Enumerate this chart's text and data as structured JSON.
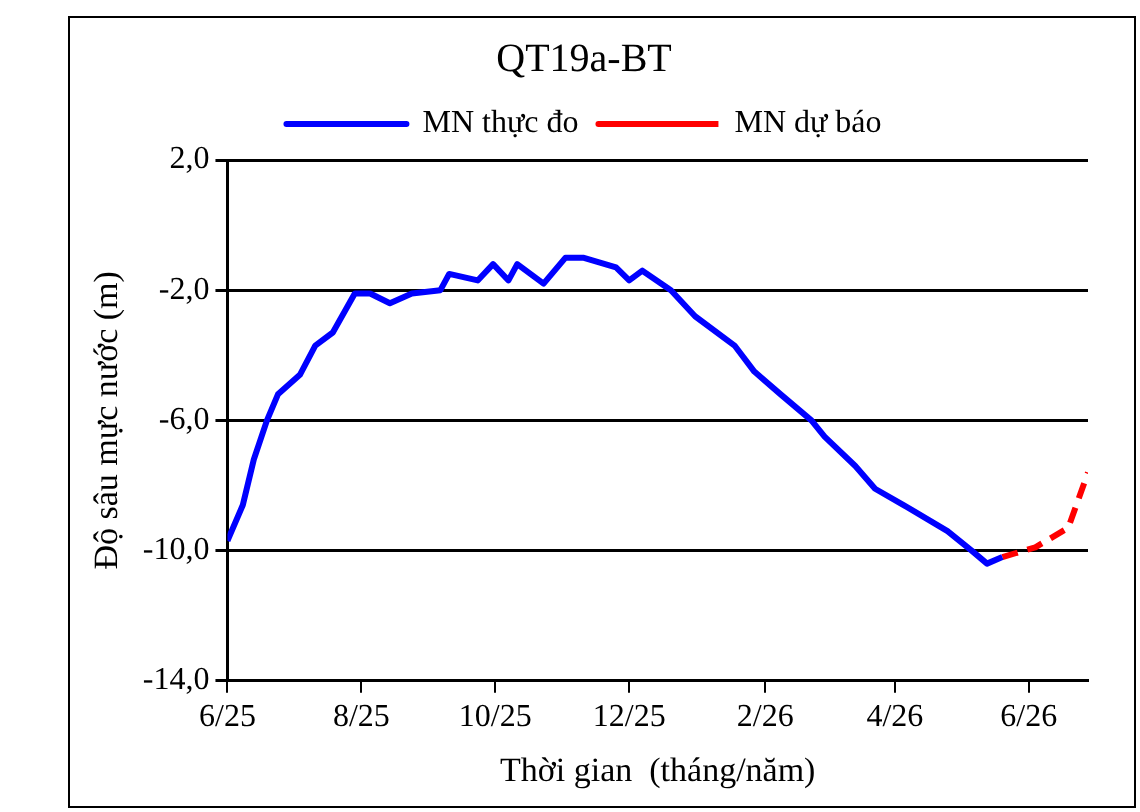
{
  "chart_data": {
    "type": "line",
    "title": "QT19a-BT",
    "xlabel": "Thời gian  (tháng/năm)",
    "ylabel": "Độ sâu mực nước (m)",
    "series": [
      {
        "name": "MN thực đo",
        "color": "#0000ff",
        "line_style": "solid",
        "x": [
          "2025-06-01",
          "2025-06-08",
          "2025-06-13",
          "2025-06-19",
          "2025-06-24",
          "2025-07-04",
          "2025-07-11",
          "2025-07-19",
          "2025-07-29",
          "2025-08-05",
          "2025-08-14",
          "2025-08-24",
          "2025-09-06",
          "2025-09-10",
          "2025-09-23",
          "2025-09-30",
          "2025-10-07",
          "2025-10-11",
          "2025-10-23",
          "2025-11-02",
          "2025-11-10",
          "2025-11-25",
          "2025-12-01",
          "2025-12-07",
          "2025-12-20",
          "2025-12-31",
          "2026-01-18",
          "2026-01-27",
          "2026-02-08",
          "2026-02-22",
          "2026-02-28",
          "2026-03-14",
          "2026-03-23",
          "2026-04-05",
          "2026-04-25",
          "2026-05-06",
          "2026-05-13",
          "2026-05-20"
        ],
        "values": [
          -9.7,
          -8.6,
          -7.2,
          -6.0,
          -5.2,
          -4.6,
          -3.7,
          -3.3,
          -2.1,
          -2.1,
          -2.4,
          -2.1,
          -2.0,
          -1.5,
          -1.7,
          -1.2,
          -1.7,
          -1.2,
          -1.8,
          -1.0,
          -1.0,
          -1.3,
          -1.7,
          -1.4,
          -2.0,
          -2.8,
          -3.7,
          -4.5,
          -5.2,
          -6.0,
          -6.5,
          -7.4,
          -8.1,
          -8.6,
          -9.4,
          -10.0,
          -10.4,
          -10.2
        ]
      },
      {
        "name": "MN dự báo",
        "color": "#ff0000",
        "line_style": "dashed",
        "x": [
          "2026-05-20",
          "2026-06-04",
          "2026-06-19",
          "2026-06-28"
        ],
        "values": [
          -10.2,
          -9.9,
          -9.3,
          -7.6
        ]
      }
    ],
    "xlim": [
      "2025-06-01",
      "2026-06-28"
    ],
    "xticks": [
      {
        "value": "2025-06",
        "label": "6/25"
      },
      {
        "value": "2025-08",
        "label": "8/25"
      },
      {
        "value": "2025-10",
        "label": "10/25"
      },
      {
        "value": "2025-12",
        "label": "12/25"
      },
      {
        "value": "2026-02",
        "label": "2/26"
      },
      {
        "value": "2026-04",
        "label": "4/26"
      },
      {
        "value": "2026-06",
        "label": "6/26"
      }
    ],
    "ylim": [
      -14,
      2
    ],
    "yticks": [
      {
        "value": -14,
        "label": "-14,0"
      },
      {
        "value": -10,
        "label": "-10,0"
      },
      {
        "value": -6,
        "label": "-6,0"
      },
      {
        "value": -2,
        "label": "-2,0"
      },
      {
        "value": 2,
        "label": "2,0"
      }
    ],
    "grid": "y",
    "legend": "top",
    "marker": "none"
  }
}
